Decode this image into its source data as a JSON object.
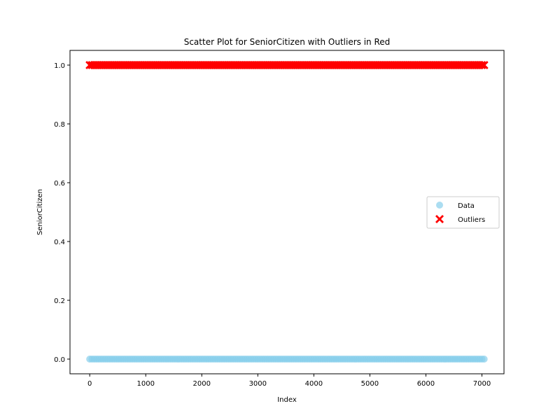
{
  "chart_data": {
    "type": "scatter",
    "title": "Scatter Plot for SeniorCitizen with Outliers in Red",
    "xlabel": "Index",
    "ylabel": "SeniorCitizen",
    "xlim": [
      -352,
      7394
    ],
    "ylim": [
      -0.05,
      1.05
    ],
    "xticks": [
      0,
      1000,
      2000,
      3000,
      4000,
      5000,
      6000,
      7000
    ],
    "xtick_labels": [
      "0",
      "1000",
      "2000",
      "3000",
      "4000",
      "5000",
      "6000",
      "7000"
    ],
    "yticks": [
      0.0,
      0.2,
      0.4,
      0.6,
      0.8,
      1.0
    ],
    "ytick_labels": [
      "0.0",
      "0.2",
      "0.4",
      "0.6",
      "0.8",
      "1.0"
    ],
    "grid": false,
    "legend_position": "center-right",
    "series": [
      {
        "name": "Data",
        "marker": "circle",
        "color": "#87ceeb",
        "x_range": [
          0,
          7042
        ],
        "y": 0
      },
      {
        "name": "Outliers",
        "marker": "x-filled",
        "color": "#ff0000",
        "x_range": [
          0,
          7042
        ],
        "y": 1
      }
    ]
  }
}
